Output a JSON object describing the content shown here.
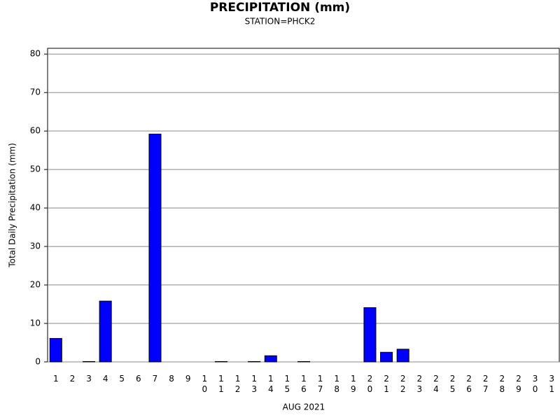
{
  "chart_data": {
    "type": "bar",
    "title": "PRECIPITATION (mm)",
    "subtitle": "STATION=PHCK2",
    "y_label": "Total Daily Precipitation (mm)",
    "x_label": "AUG 2021",
    "categories": [
      "1",
      "2",
      "3",
      "4",
      "5",
      "6",
      "7",
      "8",
      "9",
      "10",
      "11",
      "12",
      "13",
      "14",
      "15",
      "16",
      "17",
      "18",
      "19",
      "20",
      "21",
      "22",
      "23",
      "24",
      "25",
      "26",
      "27",
      "28",
      "29",
      "30",
      "31"
    ],
    "values": [
      6.1,
      0,
      0.1,
      15.8,
      0,
      0,
      59.2,
      0,
      0,
      0,
      0.1,
      0,
      0.1,
      1.6,
      0,
      0.1,
      0,
      0,
      0,
      14.1,
      2.5,
      3.3,
      0,
      0,
      0,
      0,
      0,
      0,
      0,
      0,
      0
    ],
    "color": "#0000ff",
    "ylim": [
      0,
      81.5
    ],
    "yticks": [
      0,
      10,
      20,
      30,
      40,
      50,
      60,
      70,
      80
    ],
    "grid": true
  }
}
